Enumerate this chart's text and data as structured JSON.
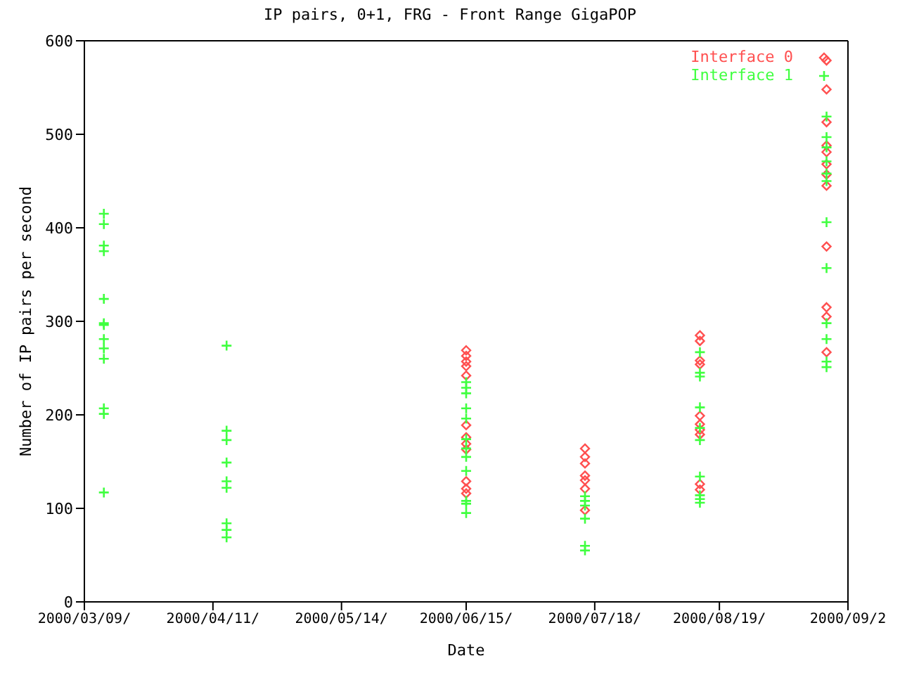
{
  "chart_data": {
    "type": "scatter",
    "title": "IP pairs, 0+1, FRG - Front Range GigaPOP",
    "xlabel": "Date",
    "ylabel": "Number of IP pairs per second",
    "xlim": [
      "2000-03-09",
      "2000-09-21"
    ],
    "xticks": [
      {
        "value": "2000-03-09",
        "label": "2000/03/09/"
      },
      {
        "value": "2000-04-11",
        "label": "2000/04/11/"
      },
      {
        "value": "2000-05-14",
        "label": "2000/05/14/"
      },
      {
        "value": "2000-06-15",
        "label": "2000/06/15/"
      },
      {
        "value": "2000-07-18",
        "label": "2000/07/18/"
      },
      {
        "value": "2000-08-19",
        "label": "2000/08/19/"
      },
      {
        "value": "2000-09-21",
        "label": "2000/09/2"
      }
    ],
    "ylim": [
      0,
      600
    ],
    "yticks": [
      0,
      100,
      200,
      300,
      400,
      500,
      600
    ],
    "grid": false,
    "legend": "top right",
    "series": [
      {
        "name": "Interface 0",
        "color": "#ff5050",
        "marker": "diamond",
        "x": [
          "2000-06-15",
          "2000-06-15",
          "2000-06-15",
          "2000-06-15",
          "2000-06-15",
          "2000-06-15",
          "2000-06-15",
          "2000-06-15",
          "2000-06-15",
          "2000-06-15",
          "2000-06-15",
          "2000-06-15",
          "2000-07-15T12:00",
          "2000-07-15T12:00",
          "2000-07-15T12:00",
          "2000-07-15T12:00",
          "2000-07-15T12:00",
          "2000-07-15T12:00",
          "2000-07-15T12:00",
          "2000-08-14",
          "2000-08-14",
          "2000-08-14",
          "2000-08-14",
          "2000-08-14",
          "2000-08-14",
          "2000-08-14",
          "2000-08-14",
          "2000-08-14",
          "2000-08-14",
          "2000-09-15T12:00",
          "2000-09-15T12:00",
          "2000-09-15T12:00",
          "2000-09-15T12:00",
          "2000-09-15T12:00",
          "2000-09-15T12:00",
          "2000-09-15T12:00",
          "2000-09-15T12:00",
          "2000-09-15T12:00",
          "2000-09-15T12:00",
          "2000-09-15T12:00",
          "2000-09-15T12:00"
        ],
        "values": [
          269,
          263,
          257,
          252,
          242,
          189,
          176,
          169,
          163,
          129,
          121,
          116,
          164,
          155,
          148,
          135,
          130,
          121,
          98,
          285,
          279,
          258,
          254,
          199,
          190,
          184,
          179,
          126,
          120,
          579,
          548,
          513,
          488,
          481,
          468,
          457,
          445,
          380,
          315,
          305,
          267
        ]
      },
      {
        "name": "Interface 1",
        "color": "#40ff40",
        "marker": "cross",
        "x": [
          "2000-03-14",
          "2000-03-14",
          "2000-03-14",
          "2000-03-14",
          "2000-03-14",
          "2000-03-14",
          "2000-03-14",
          "2000-03-14",
          "2000-03-14",
          "2000-03-14",
          "2000-03-14",
          "2000-03-14",
          "2000-03-14",
          "2000-04-14T12:00",
          "2000-04-14T12:00",
          "2000-04-14T12:00",
          "2000-04-14T12:00",
          "2000-04-14T12:00",
          "2000-04-14T12:00",
          "2000-04-14T12:00",
          "2000-04-14T12:00",
          "2000-04-14T12:00",
          "2000-06-15",
          "2000-06-15",
          "2000-06-15",
          "2000-06-15",
          "2000-06-15",
          "2000-06-15",
          "2000-06-15",
          "2000-06-15",
          "2000-06-15",
          "2000-06-15",
          "2000-06-15",
          "2000-06-15",
          "2000-07-15T12:00",
          "2000-07-15T12:00",
          "2000-07-15T12:00",
          "2000-07-15T12:00",
          "2000-07-15T12:00",
          "2000-07-15T12:00",
          "2000-08-14",
          "2000-08-14",
          "2000-08-14",
          "2000-08-14",
          "2000-08-14",
          "2000-08-14",
          "2000-08-14",
          "2000-08-14",
          "2000-08-14",
          "2000-08-14",
          "2000-09-15T12:00",
          "2000-09-15T12:00",
          "2000-09-15T12:00",
          "2000-09-15T12:00",
          "2000-09-15T12:00",
          "2000-09-15T12:00",
          "2000-09-15T12:00",
          "2000-09-15T12:00",
          "2000-09-15T12:00",
          "2000-09-15T12:00",
          "2000-09-15T12:00",
          "2000-09-15T12:00"
        ],
        "values": [
          415,
          404,
          381,
          375,
          324,
          298,
          296,
          281,
          271,
          260,
          207,
          201,
          117,
          274,
          183,
          173,
          149,
          129,
          122,
          84,
          77,
          69,
          235,
          229,
          223,
          207,
          196,
          174,
          164,
          155,
          140,
          108,
          105,
          95,
          113,
          108,
          103,
          89,
          60,
          55,
          267,
          245,
          241,
          208,
          186,
          173,
          134,
          114,
          110,
          106,
          519,
          497,
          486,
          471,
          458,
          450,
          406,
          357,
          298,
          281,
          257,
          251
        ]
      }
    ]
  }
}
